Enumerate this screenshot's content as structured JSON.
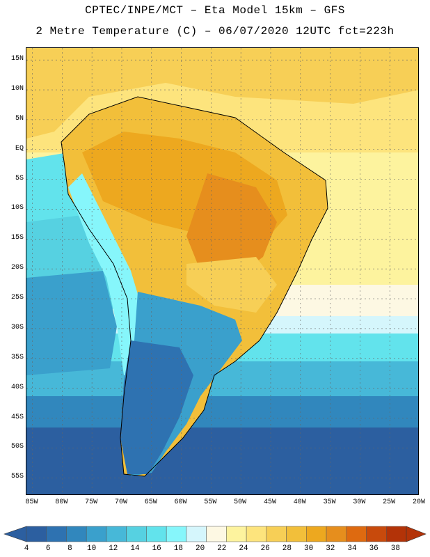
{
  "header": {
    "line1": "CPTEC/INPE/MCT –  Eta Model 15km – GFS",
    "line2": "2 Metre Temperature (C) – 06/07/2020 12UTC fct=223h"
  },
  "map": {
    "lat_labels": [
      "15N",
      "10N",
      "5N",
      "EQ",
      "5S",
      "10S",
      "15S",
      "20S",
      "25S",
      "30S",
      "35S",
      "40S",
      "45S",
      "50S",
      "55S"
    ],
    "lon_labels": [
      "85W",
      "80W",
      "75W",
      "70W",
      "65W",
      "60W",
      "55W",
      "50W",
      "45W",
      "40W",
      "35W",
      "30W",
      "25W",
      "20W"
    ],
    "extent": {
      "lon_min": -86,
      "lon_max": -20,
      "lat_min": -58,
      "lat_max": 17
    }
  },
  "colorbar": {
    "labels": [
      "4",
      "6",
      "8",
      "10",
      "12",
      "14",
      "16",
      "18",
      "20",
      "22",
      "24",
      "26",
      "28",
      "30",
      "32",
      "34",
      "36",
      "38"
    ],
    "colors": [
      "#2c5fa0",
      "#2e72b1",
      "#3187bd",
      "#3aa0cc",
      "#47b8d8",
      "#56d1e1",
      "#62e3ec",
      "#86f6fb",
      "#d5f6fc",
      "#fdf8e3",
      "#fdf39e",
      "#fde47d",
      "#f7cf56",
      "#f2bf3a",
      "#eda81f",
      "#e68e1d",
      "#de6a10",
      "#c84a0c",
      "#b33308"
    ],
    "low_arrow_color": "#2c5fa0",
    "high_arrow_color": "#b33308"
  }
}
